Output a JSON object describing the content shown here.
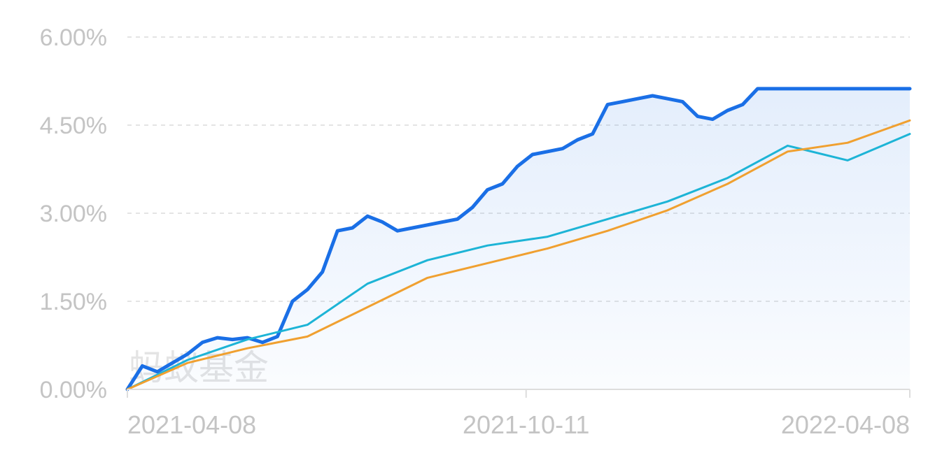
{
  "chart_data": {
    "type": "line",
    "y_ticks": [
      "0.00%",
      "1.50%",
      "3.00%",
      "4.50%",
      "6.00%"
    ],
    "ylim": [
      0,
      6
    ],
    "x_ticks": [
      "2021-04-08",
      "2021-10-11",
      "2022-04-08"
    ],
    "xlim": [
      "2021-04-08",
      "2022-04-08"
    ],
    "grid": true,
    "legend": "none",
    "watermark": "蚂蚁基金",
    "series": [
      {
        "color": "#1a6fe6",
        "area_fill": true,
        "x": [
          "2021-04-08",
          "2021-04-15",
          "2021-04-22",
          "2021-04-29",
          "2021-05-06",
          "2021-05-13",
          "2021-05-20",
          "2021-05-27",
          "2021-06-03",
          "2021-06-10",
          "2021-06-17",
          "2021-06-24",
          "2021-07-01",
          "2021-07-08",
          "2021-07-15",
          "2021-07-22",
          "2021-07-29",
          "2021-08-05",
          "2021-08-12",
          "2021-08-19",
          "2021-08-26",
          "2021-09-02",
          "2021-09-09",
          "2021-09-16",
          "2021-09-23",
          "2021-09-30",
          "2021-10-07",
          "2021-10-14",
          "2021-10-21",
          "2021-10-28",
          "2021-11-04",
          "2021-11-11",
          "2021-11-18",
          "2021-11-25",
          "2021-12-02",
          "2021-12-09",
          "2021-12-16",
          "2021-12-23",
          "2021-12-30",
          "2022-01-06",
          "2022-01-13",
          "2022-01-20",
          "2022-01-27",
          "2022-02-03",
          "2022-02-10",
          "2022-02-17",
          "2022-02-24",
          "2022-03-03",
          "2022-03-10",
          "2022-03-17",
          "2022-03-24",
          "2022-03-31",
          "2022-04-08"
        ],
        "y": [
          0.0,
          0.4,
          0.3,
          0.45,
          0.6,
          0.8,
          0.88,
          0.85,
          0.88,
          0.8,
          0.9,
          1.5,
          1.7,
          2.0,
          2.7,
          2.75,
          2.95,
          2.85,
          2.7,
          2.75,
          2.8,
          2.85,
          2.9,
          3.1,
          3.4,
          3.5,
          3.8,
          4.0,
          4.05,
          4.1,
          4.25,
          4.35,
          4.85,
          4.9,
          4.95,
          5.0,
          4.95,
          4.9,
          4.65,
          4.6,
          4.75,
          4.85,
          5.12,
          5.12,
          5.12,
          5.12,
          5.12,
          5.12,
          5.12,
          5.12,
          5.12,
          5.12,
          5.12
        ]
      },
      {
        "color": "#1db4d6",
        "area_fill": false,
        "x": [
          "2021-04-08",
          "2021-05-06",
          "2021-06-03",
          "2021-07-01",
          "2021-07-29",
          "2021-08-26",
          "2021-09-23",
          "2021-10-21",
          "2021-11-18",
          "2021-12-16",
          "2022-01-13",
          "2022-02-10",
          "2022-03-10",
          "2022-04-08"
        ],
        "y": [
          0.0,
          0.5,
          0.85,
          1.1,
          1.8,
          2.2,
          2.45,
          2.6,
          2.9,
          3.2,
          3.6,
          4.15,
          3.9,
          4.35
        ]
      },
      {
        "color": "#f0a030",
        "area_fill": false,
        "x": [
          "2021-04-08",
          "2021-05-06",
          "2021-06-03",
          "2021-07-01",
          "2021-07-29",
          "2021-08-26",
          "2021-09-23",
          "2021-10-21",
          "2021-11-18",
          "2021-12-16",
          "2022-01-13",
          "2022-02-10",
          "2022-03-10",
          "2022-04-08"
        ],
        "y": [
          0.0,
          0.45,
          0.7,
          0.9,
          1.4,
          1.9,
          2.15,
          2.4,
          2.7,
          3.05,
          3.5,
          4.05,
          4.2,
          4.58
        ]
      }
    ]
  }
}
